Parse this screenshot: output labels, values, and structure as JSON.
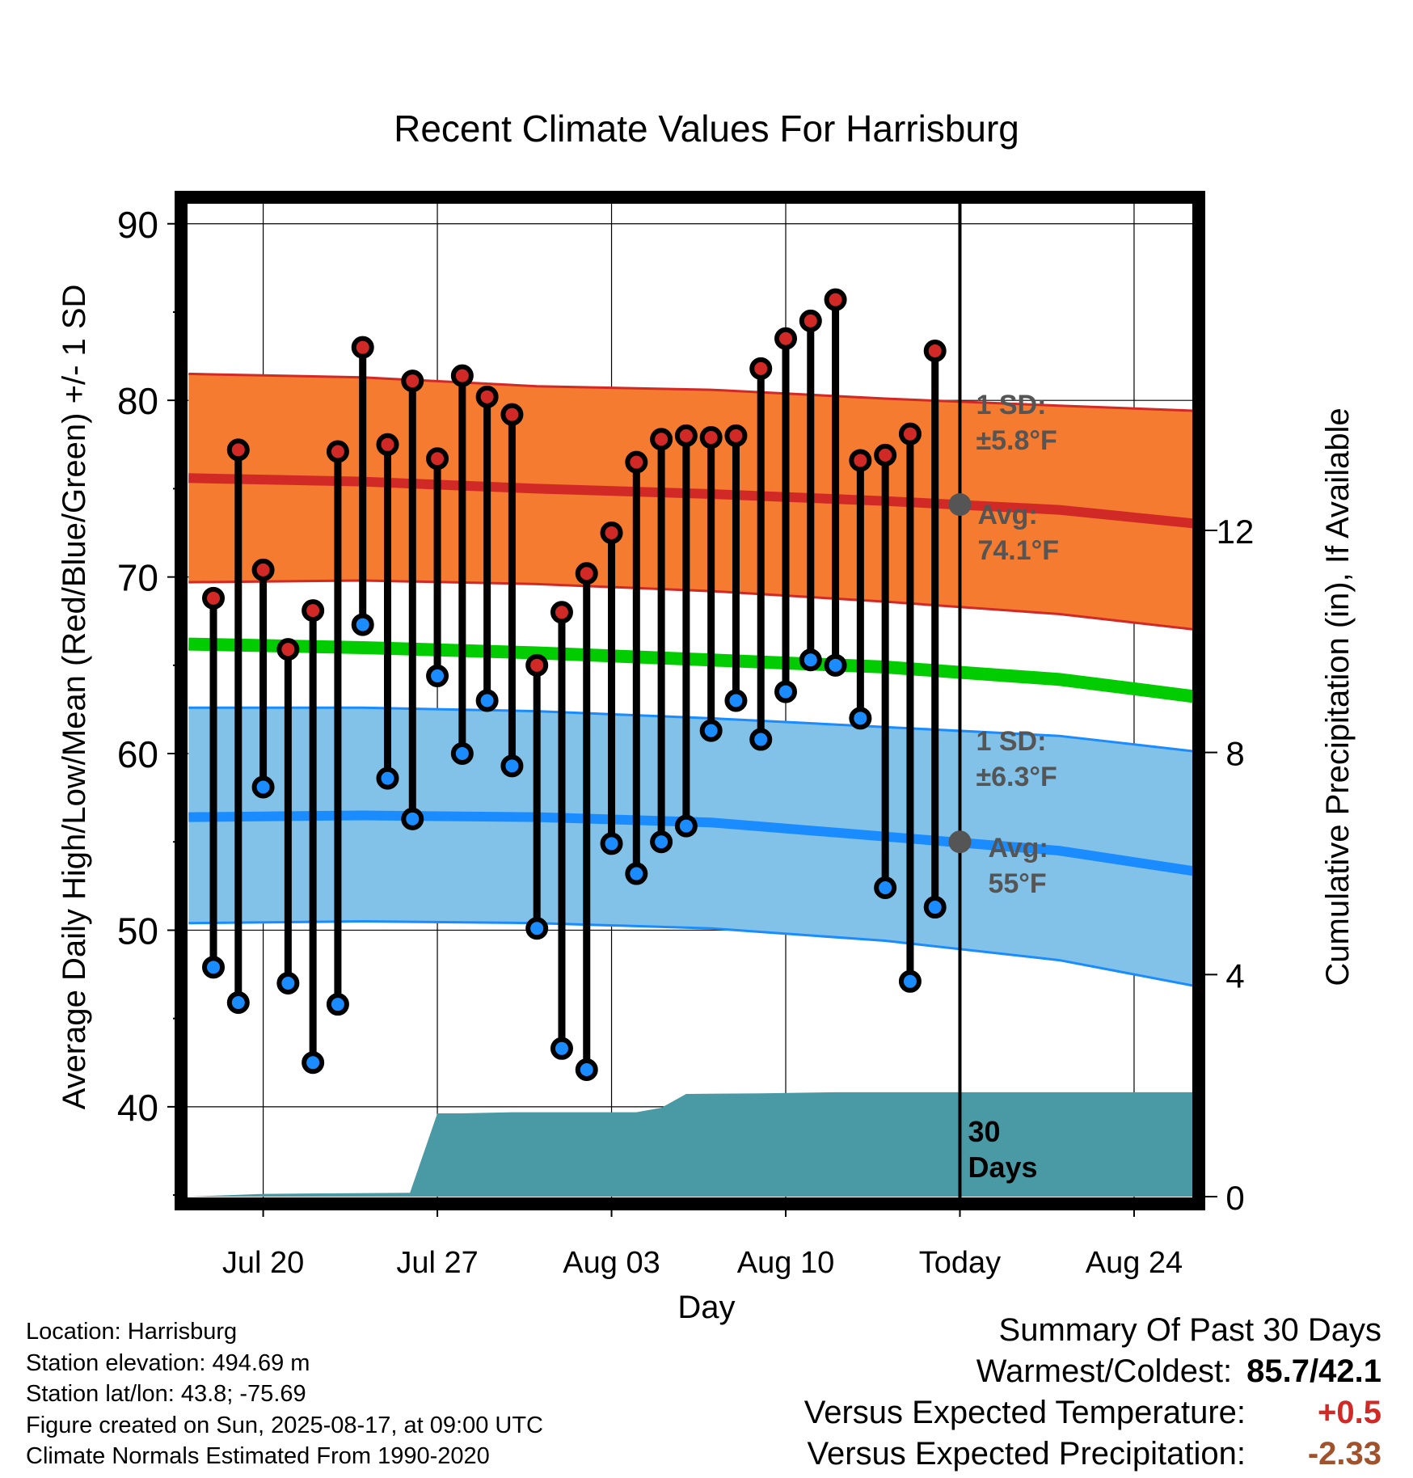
{
  "chart_data": {
    "type": "line",
    "title": "Recent Climate Values For Harrisburg",
    "xlabel": "Day",
    "ylabel": "Average Daily High/Low/Mean (Red/Blue/Green) +/- 1 SD",
    "y2label": "Cumulative Precipitation (in), If Available",
    "ylim": [
      34.5,
      91.5
    ],
    "y_ticks": [
      40,
      50,
      60,
      70,
      80,
      90
    ],
    "y2lim": [
      0,
      18
    ],
    "y2_ticks": [
      0,
      4,
      8,
      12
    ],
    "x_ticks": [
      {
        "label": "Jul 20",
        "day": 20
      },
      {
        "label": "Jul 27",
        "day": 27
      },
      {
        "label": "Aug 03",
        "day": 34
      },
      {
        "label": "Aug 10",
        "day": 41
      },
      {
        "label": "Today",
        "day": 48
      },
      {
        "label": "Aug 24",
        "day": 55
      }
    ],
    "xlim_days": [
      16.7,
      57.6
    ],
    "today_day": 48,
    "grid": true,
    "observations": {
      "days": [
        18,
        19,
        20,
        21,
        22,
        23,
        24,
        25,
        26,
        27,
        28,
        29,
        30,
        31,
        32,
        33,
        34,
        35,
        36,
        37,
        38,
        39,
        40,
        41,
        42,
        43,
        44,
        45,
        46,
        47
      ],
      "high": [
        68.8,
        77.2,
        70.4,
        65.9,
        68.1,
        77.1,
        83.0,
        77.5,
        81.1,
        76.7,
        81.4,
        80.2,
        79.2,
        65.0,
        68.0,
        70.2,
        72.5,
        76.5,
        77.8,
        78.0,
        77.9,
        78.0,
        81.8,
        83.5,
        84.5,
        85.7,
        76.6,
        76.9,
        78.1,
        82.8
      ],
      "low": [
        47.9,
        45.9,
        58.1,
        47.0,
        42.5,
        45.8,
        67.3,
        58.6,
        56.3,
        64.4,
        60.0,
        63.0,
        59.3,
        50.1,
        43.3,
        42.1,
        54.9,
        53.2,
        55.0,
        55.9,
        61.3,
        63.0,
        60.8,
        63.5,
        65.3,
        65.0,
        62.0,
        52.4,
        47.1,
        51.3
      ]
    },
    "normals": {
      "days": [
        17,
        24,
        31,
        38,
        45,
        52,
        57.6
      ],
      "high_avg": [
        75.6,
        75.4,
        75.0,
        74.7,
        74.3,
        73.8,
        73.0
      ],
      "high_upper": [
        81.5,
        81.3,
        80.8,
        80.6,
        80.1,
        79.7,
        79.4
      ],
      "high_lower": [
        69.7,
        69.8,
        69.6,
        69.2,
        68.6,
        67.9,
        67.0
      ],
      "mean_avg": [
        66.2,
        66.0,
        65.7,
        65.3,
        64.9,
        64.2,
        63.2
      ],
      "low_avg": [
        56.4,
        56.5,
        56.4,
        56.1,
        55.3,
        54.5,
        53.3
      ],
      "low_upper": [
        62.6,
        62.6,
        62.4,
        62.0,
        61.5,
        61.0,
        60.1
      ],
      "low_lower": [
        50.4,
        50.5,
        50.4,
        50.1,
        49.4,
        48.3,
        46.8
      ]
    },
    "precipitation": {
      "days": [
        17,
        20,
        25.9,
        26,
        27,
        28,
        30,
        35,
        36,
        37,
        40,
        43,
        48,
        57.6
      ],
      "inches": [
        0,
        0.05,
        0.07,
        0.2,
        1.5,
        1.5,
        1.52,
        1.52,
        1.6,
        1.85,
        1.86,
        1.88,
        1.88,
        1.88
      ]
    },
    "annotations": {
      "high_sd_label": "1 SD:",
      "high_sd_value": "±5.8°F",
      "high_avg_label": "Avg:",
      "high_avg_value": "74.1°F",
      "high_avg_today": 74.1,
      "low_sd_label": "1 SD:",
      "low_sd_value": "±6.3°F",
      "low_avg_label": "Avg:",
      "low_avg_value": "55°F",
      "low_avg_today": 55,
      "window_label_1": "30",
      "window_label_2": "Days"
    },
    "colors": {
      "high_band": "#f47b2f",
      "high_line": "#d12a26",
      "high_marker": "#d12a26",
      "mean_line": "#00cc00",
      "low_band": "#82c2e8",
      "low_line": "#1a8cff",
      "low_marker": "#1a8cff",
      "precip_fill": "#4a9aa5",
      "annotation_text": "#555555",
      "today_marker": "#555555"
    }
  },
  "info": {
    "location": "Location: Harrisburg",
    "elevation": "Station elevation: 494.69 m",
    "latlon": "Station lat/lon: 43.8; -75.69",
    "created": "Figure created on Sun, 2025-08-17, at 09:00 UTC",
    "normals": "Climate Normals Estimated From 1990-2020"
  },
  "summary": {
    "title": "Summary Of Past 30 Days",
    "warm_cold_label": "Warmest/Coldest:",
    "warm_cold_value": "85.7/42.1",
    "temp_label": "Versus Expected Temperature:",
    "temp_value": "+0.5",
    "temp_color": "#d12a26",
    "precip_label": "Versus Expected Precipitation:",
    "precip_value": "-2.33",
    "precip_color": "#a0522d"
  }
}
